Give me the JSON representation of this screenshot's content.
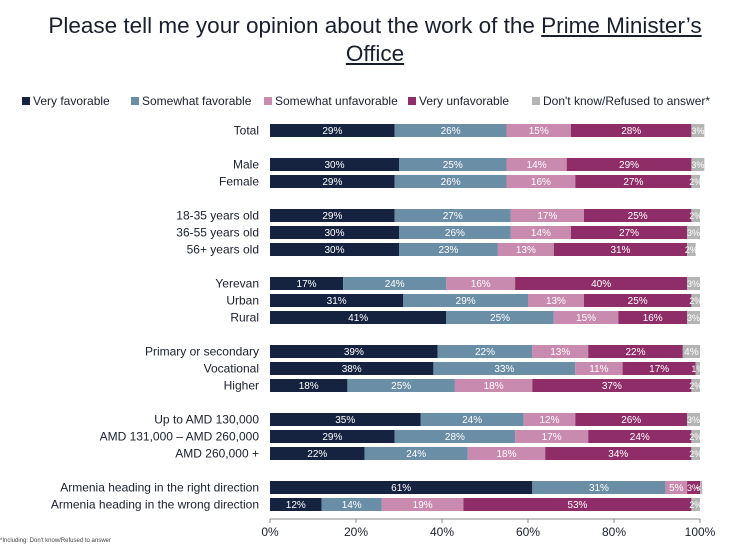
{
  "title": {
    "prefix": "Please tell me your opinion about the work of the",
    "underlined_1": "Prime Minister’s",
    "underlined_2": "Office"
  },
  "colors": {
    "very_favorable": "#152340",
    "somewhat_favorable": "#6a8ea6",
    "somewhat_unfavorable": "#c98aaf",
    "very_unfavorable": "#8f2d68",
    "dont_know": "#b4b4b4"
  },
  "chart_data": {
    "type": "bar",
    "orientation": "horizontal",
    "stacked": true,
    "xlim": [
      0,
      100
    ],
    "x_ticks": [
      "0%",
      "20%",
      "40%",
      "60%",
      "80%",
      "100%"
    ],
    "legend_position": "top",
    "grid": false,
    "series": [
      {
        "name": "Very favorable",
        "color_key": "very_favorable"
      },
      {
        "name": "Somewhat favorable",
        "color_key": "somewhat_favorable"
      },
      {
        "name": "Somewhat unfavorable",
        "color_key": "somewhat_unfavorable"
      },
      {
        "name": "Very unfavorable",
        "color_key": "very_unfavorable"
      },
      {
        "name": "Don't know/Refused to answer*",
        "color_key": "dont_know"
      }
    ],
    "groups": [
      {
        "rows": [
          {
            "label": "Total",
            "values": [
              29,
              26,
              15,
              28,
              3
            ]
          }
        ]
      },
      {
        "rows": [
          {
            "label": "Male",
            "values": [
              30,
              25,
              14,
              29,
              3
            ]
          },
          {
            "label": "Female",
            "values": [
              29,
              26,
              16,
              27,
              2
            ]
          }
        ]
      },
      {
        "rows": [
          {
            "label": "18-35 years old",
            "values": [
              29,
              27,
              17,
              25,
              2
            ]
          },
          {
            "label": "36-55 years old",
            "values": [
              30,
              26,
              14,
              27,
              3
            ]
          },
          {
            "label": "56+ years old",
            "values": [
              30,
              23,
              13,
              31,
              2
            ]
          }
        ]
      },
      {
        "rows": [
          {
            "label": "Yerevan",
            "values": [
              17,
              24,
              16,
              40,
              3
            ]
          },
          {
            "label": "Urban",
            "values": [
              31,
              29,
              13,
              25,
              2
            ]
          },
          {
            "label": "Rural",
            "values": [
              41,
              25,
              15,
              16,
              3
            ]
          }
        ]
      },
      {
        "rows": [
          {
            "label": "Primary or secondary",
            "values": [
              39,
              22,
              13,
              22,
              4
            ]
          },
          {
            "label": "Vocational",
            "values": [
              38,
              33,
              11,
              17,
              1
            ]
          },
          {
            "label": "Higher",
            "values": [
              18,
              25,
              18,
              37,
              2
            ]
          }
        ]
      },
      {
        "rows": [
          {
            "label": "Up to AMD 130,000",
            "values": [
              35,
              24,
              12,
              26,
              3
            ]
          },
          {
            "label": "AMD 131,000 – AMD 260,000",
            "values": [
              29,
              28,
              17,
              24,
              2
            ]
          },
          {
            "label": "AMD 260,000 +",
            "values": [
              22,
              24,
              18,
              34,
              2
            ]
          }
        ]
      },
      {
        "rows": [
          {
            "label": "Armenia heading in the right direction",
            "values": [
              61,
              31,
              5,
              3,
              0.5
            ],
            "value_labels": [
              "61%",
              "31%",
              "5%",
              "3%",
              "<1"
            ]
          },
          {
            "label": "Armenia heading in the wrong direction",
            "values": [
              12,
              14,
              19,
              53,
              2
            ]
          }
        ]
      }
    ]
  },
  "footnote": "*Including: Don't know/Refused to answer"
}
